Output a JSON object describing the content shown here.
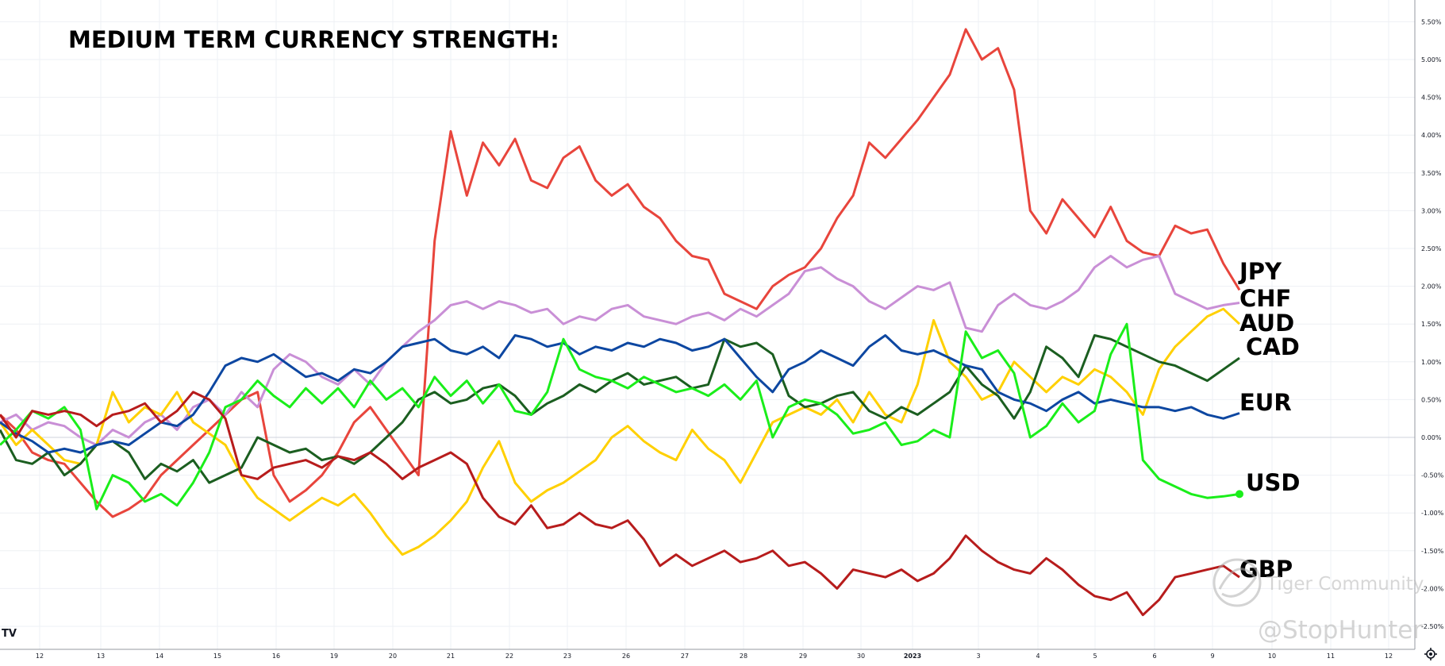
{
  "title": "MEDIUM TERM CURRENCY STRENGTH:",
  "chart_data": {
    "type": "line",
    "title": "MEDIUM TERM CURRENCY STRENGTH:",
    "xlabel": "",
    "ylabel": "",
    "ylim": [
      -2.65,
      5.7
    ],
    "grid": true,
    "legend": "series names printed at right end of lines",
    "x_ticks": [
      "12",
      "13",
      "14",
      "15",
      "16",
      "19",
      "20",
      "21",
      "22",
      "23",
      "26",
      "27",
      "28",
      "29",
      "30",
      "2023",
      "3",
      "4",
      "5",
      "6",
      "9",
      "10",
      "11",
      "12"
    ],
    "y_ticks": [
      "5.50%",
      "5.00%",
      "4.50%",
      "4.00%",
      "3.50%",
      "3.00%",
      "2.50%",
      "2.00%",
      "1.50%",
      "1.00%",
      "0.50%",
      "0.00%",
      "-0.50%",
      "-1.00%",
      "-1.50%",
      "-2.00%",
      "-2.50%"
    ],
    "x_start": 11.4,
    "x_end": 20.1,
    "series": [
      {
        "name": "JPY",
        "color": "#e8453c",
        "width": 3,
        "values": [
          0.3,
          0.1,
          -0.2,
          -0.3,
          -0.35,
          -0.6,
          -0.85,
          -1.05,
          -0.95,
          -0.8,
          -0.5,
          -0.3,
          -0.1,
          0.1,
          0.3,
          0.5,
          0.6,
          -0.5,
          -0.85,
          -0.7,
          -0.5,
          -0.2,
          0.2,
          0.4,
          0.1,
          -0.2,
          -0.5,
          2.6,
          4.05,
          3.2,
          3.9,
          3.6,
          3.95,
          3.4,
          3.3,
          3.7,
          3.85,
          3.4,
          3.2,
          3.35,
          3.05,
          2.9,
          2.6,
          2.4,
          2.35,
          1.9,
          1.8,
          1.7,
          2.0,
          2.15,
          2.25,
          2.5,
          2.9,
          3.2,
          3.9,
          3.7,
          3.95,
          4.2,
          4.5,
          4.8,
          5.4,
          5.0,
          5.15,
          4.6,
          3.0,
          2.7,
          3.15,
          2.9,
          2.65,
          3.05,
          2.6,
          2.45,
          2.4,
          2.8,
          2.7,
          2.75,
          2.3,
          1.95
        ]
      },
      {
        "name": "CHF",
        "color": "#c98fd6",
        "width": 3,
        "values": [
          0.2,
          0.3,
          0.1,
          0.2,
          0.15,
          0.0,
          -0.1,
          0.1,
          0.0,
          0.2,
          0.3,
          0.1,
          0.4,
          0.5,
          0.3,
          0.6,
          0.4,
          0.9,
          1.1,
          1.0,
          0.8,
          0.7,
          0.9,
          0.7,
          1.0,
          1.2,
          1.4,
          1.55,
          1.75,
          1.8,
          1.7,
          1.8,
          1.75,
          1.65,
          1.7,
          1.5,
          1.6,
          1.55,
          1.7,
          1.75,
          1.6,
          1.55,
          1.5,
          1.6,
          1.65,
          1.55,
          1.7,
          1.6,
          1.75,
          1.9,
          2.2,
          2.25,
          2.1,
          2.0,
          1.8,
          1.7,
          1.85,
          2.0,
          1.95,
          2.05,
          1.45,
          1.4,
          1.75,
          1.9,
          1.75,
          1.7,
          1.8,
          1.95,
          2.25,
          2.4,
          2.25,
          2.35,
          2.4,
          1.9,
          1.8,
          1.7,
          1.75,
          1.78
        ]
      },
      {
        "name": "AUD",
        "color": "#ffd000",
        "width": 3,
        "values": [
          0.2,
          -0.1,
          0.1,
          -0.1,
          -0.3,
          -0.35,
          -0.1,
          0.6,
          0.2,
          0.4,
          0.3,
          0.6,
          0.2,
          0.05,
          -0.1,
          -0.5,
          -0.8,
          -0.95,
          -1.1,
          -0.95,
          -0.8,
          -0.9,
          -0.75,
          -1.0,
          -1.3,
          -1.55,
          -1.45,
          -1.3,
          -1.1,
          -0.85,
          -0.4,
          -0.05,
          -0.6,
          -0.85,
          -0.7,
          -0.6,
          -0.45,
          -0.3,
          0.0,
          0.15,
          -0.05,
          -0.2,
          -0.3,
          0.1,
          -0.15,
          -0.3,
          -0.6,
          -0.2,
          0.2,
          0.3,
          0.4,
          0.3,
          0.5,
          0.2,
          0.6,
          0.3,
          0.2,
          0.7,
          1.55,
          1.0,
          0.8,
          0.5,
          0.6,
          1.0,
          0.8,
          0.6,
          0.8,
          0.7,
          0.9,
          0.8,
          0.6,
          0.3,
          0.9,
          1.2,
          1.4,
          1.6,
          1.7,
          1.5
        ]
      },
      {
        "name": "CAD",
        "color": "#1b5e20",
        "width": 3,
        "values": [
          0.1,
          -0.3,
          -0.35,
          -0.2,
          -0.5,
          -0.35,
          -0.1,
          -0.05,
          -0.2,
          -0.55,
          -0.35,
          -0.45,
          -0.3,
          -0.6,
          -0.5,
          -0.4,
          0.0,
          -0.1,
          -0.2,
          -0.15,
          -0.3,
          -0.25,
          -0.35,
          -0.2,
          0.0,
          0.2,
          0.5,
          0.6,
          0.45,
          0.5,
          0.65,
          0.7,
          0.55,
          0.3,
          0.45,
          0.55,
          0.7,
          0.6,
          0.75,
          0.85,
          0.7,
          0.75,
          0.8,
          0.65,
          0.7,
          1.3,
          1.2,
          1.25,
          1.1,
          0.55,
          0.4,
          0.45,
          0.55,
          0.6,
          0.35,
          0.25,
          0.4,
          0.3,
          0.45,
          0.6,
          0.95,
          0.7,
          0.55,
          0.25,
          0.6,
          1.2,
          1.05,
          0.8,
          1.35,
          1.3,
          1.2,
          1.1,
          1.0,
          0.95,
          0.85,
          0.75,
          0.9,
          1.05
        ]
      },
      {
        "name": "EUR",
        "color": "#0d47a1",
        "width": 3,
        "values": [
          0.2,
          0.05,
          -0.05,
          -0.2,
          -0.15,
          -0.2,
          -0.1,
          -0.05,
          -0.1,
          0.05,
          0.2,
          0.15,
          0.3,
          0.6,
          0.95,
          1.05,
          1.0,
          1.1,
          0.95,
          0.8,
          0.85,
          0.75,
          0.9,
          0.85,
          1.0,
          1.2,
          1.25,
          1.3,
          1.15,
          1.1,
          1.2,
          1.05,
          1.35,
          1.3,
          1.2,
          1.25,
          1.1,
          1.2,
          1.15,
          1.25,
          1.2,
          1.3,
          1.25,
          1.15,
          1.2,
          1.3,
          1.05,
          0.8,
          0.6,
          0.9,
          1.0,
          1.15,
          1.05,
          0.95,
          1.2,
          1.35,
          1.15,
          1.1,
          1.15,
          1.05,
          0.95,
          0.9,
          0.6,
          0.5,
          0.45,
          0.35,
          0.5,
          0.6,
          0.45,
          0.5,
          0.45,
          0.4,
          0.4,
          0.35,
          0.4,
          0.3,
          0.25,
          0.32
        ]
      },
      {
        "name": "USD",
        "color": "#1aee1a",
        "width": 3,
        "values": [
          -0.1,
          0.1,
          0.35,
          0.25,
          0.4,
          0.1,
          -0.95,
          -0.5,
          -0.6,
          -0.85,
          -0.75,
          -0.9,
          -0.6,
          -0.2,
          0.4,
          0.5,
          0.75,
          0.55,
          0.4,
          0.65,
          0.45,
          0.65,
          0.4,
          0.75,
          0.5,
          0.65,
          0.4,
          0.8,
          0.55,
          0.75,
          0.45,
          0.7,
          0.35,
          0.3,
          0.6,
          1.3,
          0.9,
          0.8,
          0.75,
          0.65,
          0.8,
          0.7,
          0.6,
          0.65,
          0.55,
          0.7,
          0.5,
          0.75,
          0.0,
          0.4,
          0.5,
          0.45,
          0.3,
          0.05,
          0.1,
          0.2,
          -0.1,
          -0.05,
          0.1,
          0.0,
          1.4,
          1.05,
          1.15,
          0.85,
          0.0,
          0.15,
          0.45,
          0.2,
          0.35,
          1.1,
          1.5,
          -0.3,
          -0.55,
          -0.65,
          -0.75,
          -0.8,
          -0.78,
          -0.75
        ]
      },
      {
        "name": "GBP",
        "color": "#b71c1c",
        "width": 3,
        "values": [
          0.3,
          0.0,
          0.35,
          0.3,
          0.35,
          0.3,
          0.15,
          0.3,
          0.35,
          0.45,
          0.2,
          0.35,
          0.6,
          0.5,
          0.25,
          -0.5,
          -0.55,
          -0.4,
          -0.35,
          -0.3,
          -0.4,
          -0.25,
          -0.3,
          -0.2,
          -0.35,
          -0.55,
          -0.4,
          -0.3,
          -0.2,
          -0.35,
          -0.8,
          -1.05,
          -1.15,
          -0.9,
          -1.2,
          -1.15,
          -1.0,
          -1.15,
          -1.2,
          -1.1,
          -1.35,
          -1.7,
          -1.55,
          -1.7,
          -1.6,
          -1.5,
          -1.65,
          -1.6,
          -1.5,
          -1.7,
          -1.65,
          -1.8,
          -2.0,
          -1.75,
          -1.8,
          -1.85,
          -1.75,
          -1.9,
          -1.8,
          -1.6,
          -1.3,
          -1.5,
          -1.65,
          -1.75,
          -1.8,
          -1.6,
          -1.75,
          -1.95,
          -2.1,
          -2.15,
          -2.05,
          -2.35,
          -2.15,
          -1.85,
          -1.8,
          -1.75,
          -1.7,
          -1.85
        ]
      }
    ],
    "end_labels": [
      "JPY",
      "CHF",
      "AUD",
      "CAD",
      "EUR",
      "USD",
      "GBP"
    ]
  },
  "watermarks": {
    "community": "Tiger Community",
    "handle": "@StopHunter",
    "tv_logo": "TV"
  },
  "icons": {
    "settings": "gear-icon"
  }
}
